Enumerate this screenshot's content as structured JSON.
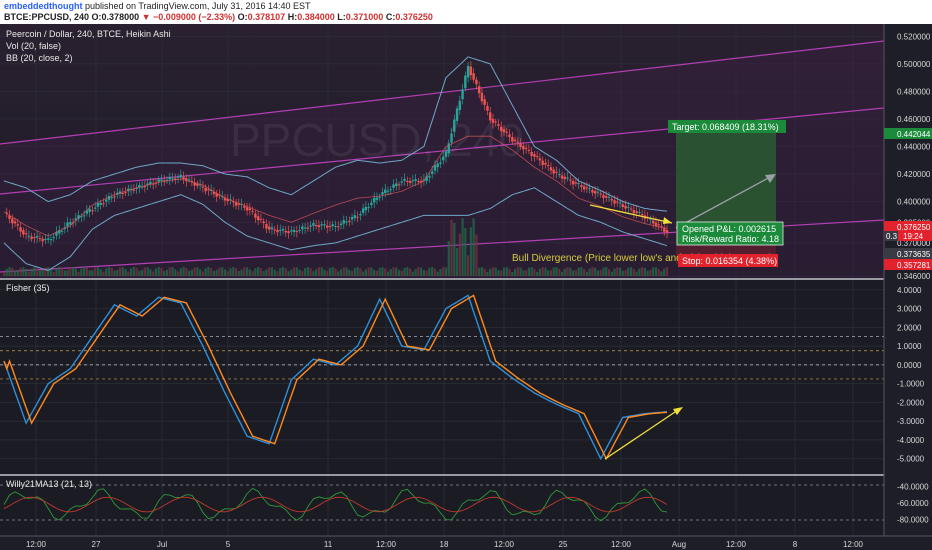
{
  "header": {
    "author": "embeddedthought",
    "published": "published on TradingView.com, July 31, 2016 14:40 EST",
    "symbol": "BTCE:PPCUSD, 240",
    "ohlc": {
      "o_label": "O:",
      "o": "0.378000",
      "change": "−0.009000 (−2.33%)",
      "o2_label": "O:",
      "o2": "0.378107",
      "h_label": "H:",
      "h": "0.384000",
      "l_label": "L:",
      "l": "0.371000",
      "c_label": "C:",
      "c": "0.376250"
    }
  },
  "legend": {
    "title": "Peercoin / Dollar, 240, BTCE, Heikin Ashi",
    "vol": "Vol (20, false)",
    "bb": "BB (20, close, 2)"
  },
  "watermark": "PPCUSD, 240",
  "annotations": {
    "target": "Target: 0.068409 (18.31%)",
    "opened_pnl": "Opened P&L: 0.002615",
    "risk_reward": "Risk/Reward Ratio: 4.18",
    "stop": "Stop: 0.016354 (4.38%)",
    "divergence": "Bull Divergence (Price lower low's and Fisher higher Lows)"
  },
  "colors": {
    "background": "#1e1e28",
    "up_candle": "#26a69a",
    "down_candle": "#ef5350",
    "bb_band": "#6fa8c7",
    "channel": "#b23fb3",
    "target_zone": "#2a5a30",
    "stop_zone": "#5a2030",
    "fisher_a": "#2f8fd8",
    "fisher_b": "#ff8a1e",
    "arrow": "#f2e03a"
  },
  "price_badges": {
    "target_level": "0.442044",
    "last": "0.376250",
    "last_small": "0.3",
    "countdown": "19:24",
    "l1": "0.373635",
    "l2": "0.357281"
  },
  "chart_data": [
    {
      "type": "line",
      "title": "Peercoin / Dollar, 240, BTCE, Heikin Ashi",
      "y_ticks": [
        "0.520000",
        "0.500000",
        "0.480000",
        "0.460000",
        "0.440000",
        "0.420000",
        "0.400000",
        "0.385000",
        "0.370000",
        "0.346000"
      ],
      "x_ticks": [
        "12:00",
        "27",
        "Jul",
        "5",
        "11",
        "12:00",
        "18",
        "12:00",
        "25",
        "12:00",
        "Aug",
        "12:00",
        "8",
        "12:00"
      ],
      "ylim": [
        0.346,
        0.526
      ],
      "x": [
        0,
        2,
        4,
        6,
        8,
        10,
        12,
        14,
        16,
        18,
        20,
        22,
        24,
        26,
        28,
        30,
        32,
        34,
        36,
        38,
        40,
        42,
        44,
        46,
        48,
        50,
        52,
        54,
        56,
        58,
        60
      ],
      "close": [
        0.392,
        0.375,
        0.372,
        0.385,
        0.395,
        0.405,
        0.41,
        0.415,
        0.418,
        0.41,
        0.402,
        0.395,
        0.38,
        0.378,
        0.383,
        0.382,
        0.39,
        0.405,
        0.415,
        0.415,
        0.435,
        0.498,
        0.46,
        0.445,
        0.433,
        0.42,
        0.412,
        0.405,
        0.397,
        0.389,
        0.378
      ],
      "bb_upper": [
        0.415,
        0.41,
        0.4,
        0.405,
        0.415,
        0.42,
        0.425,
        0.428,
        0.428,
        0.426,
        0.42,
        0.418,
        0.41,
        0.405,
        0.415,
        0.425,
        0.43,
        0.428,
        0.43,
        0.44,
        0.49,
        0.505,
        0.5,
        0.47,
        0.44,
        0.43,
        0.415,
        0.408,
        0.4,
        0.395,
        0.393
      ],
      "bb_lower": [
        0.37,
        0.355,
        0.35,
        0.36,
        0.38,
        0.39,
        0.395,
        0.4,
        0.405,
        0.398,
        0.385,
        0.375,
        0.37,
        0.365,
        0.368,
        0.37,
        0.375,
        0.38,
        0.385,
        0.39,
        0.39,
        0.39,
        0.395,
        0.405,
        0.41,
        0.4,
        0.39,
        0.385,
        0.378,
        0.373,
        0.368
      ]
    },
    {
      "type": "line",
      "title": "Fisher (35)",
      "ylim": [
        -5.6,
        4.2
      ],
      "y_ticks": [
        "4.0000",
        "3.0000",
        "2.0000",
        "1.0000",
        "0.0000",
        "-1.0000",
        "-2.0000",
        "-3.0000",
        "-4.0000",
        "-5.0000"
      ],
      "x": [
        0,
        2,
        4,
        6,
        8,
        10,
        12,
        14,
        16,
        18,
        20,
        22,
        24,
        26,
        28,
        30,
        32,
        34,
        36,
        38,
        40,
        42,
        44,
        46,
        48,
        50,
        52,
        54,
        56,
        58,
        60
      ],
      "fisher": [
        0.2,
        -3.1,
        -1.0,
        -0.2,
        1.5,
        3.2,
        2.6,
        3.6,
        3.3,
        1.0,
        -1.5,
        -3.8,
        -4.2,
        -0.8,
        0.3,
        0.0,
        1.0,
        3.5,
        1.0,
        0.8,
        3.0,
        3.7,
        0.2,
        -0.7,
        -1.5,
        -2.1,
        -2.6,
        -5.0,
        -2.8,
        -2.6,
        -2.5
      ]
    },
    {
      "type": "line",
      "title": "Willy21MA13 (21, 13)",
      "ylim": [
        -98,
        -32
      ],
      "y_ticks": [
        "-40.0000",
        "-60.0000",
        "-80.0000"
      ]
    }
  ]
}
